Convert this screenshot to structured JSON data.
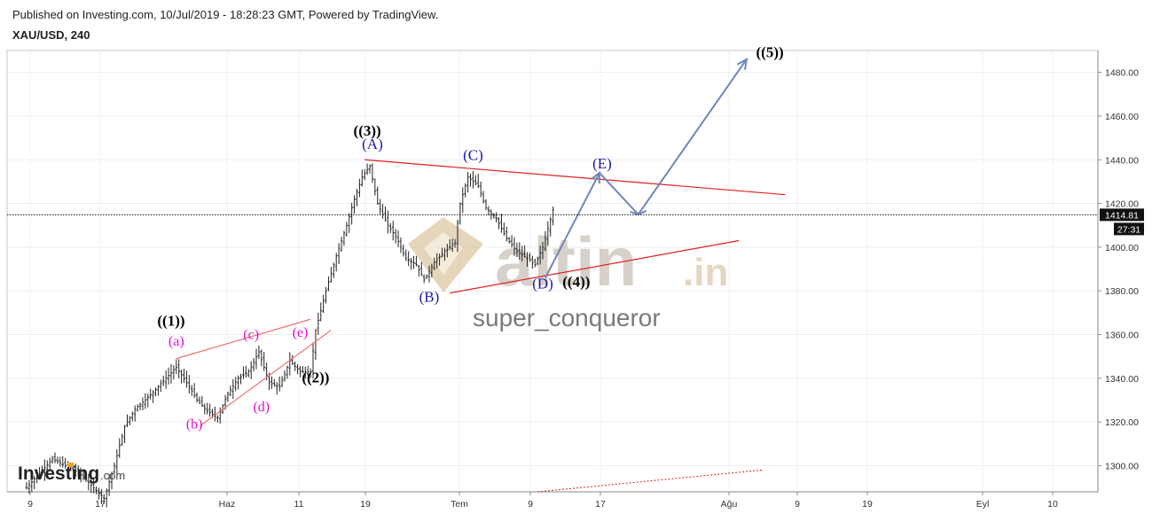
{
  "header": {
    "published": "Published on Investing.com, 10/Jul/2019 - 18:28:23 GMT, Powered by TradingView.",
    "symbol": "XAU/USD, 240"
  },
  "watermark": {
    "brand_main": "altin",
    "brand_tld": ".in",
    "author": "super_conqueror",
    "investing_logo": "Investing",
    "investing_suffix": ".com"
  },
  "colors": {
    "trendline": "#e02020",
    "arrow": "#6f86b9",
    "wave_blue": "#1a1aa6",
    "wave_pink": "#e010d0",
    "price_tag_bg": "#111111"
  },
  "chart_data": {
    "type": "candlestick",
    "ylim": [
      1288,
      1490
    ],
    "y_ticks": [
      "1300.00",
      "1320.00",
      "1340.00",
      "1360.00",
      "1380.00",
      "1400.00",
      "1420.00",
      "1440.00",
      "1460.00",
      "1480.00"
    ],
    "x_ticks": [
      "9",
      "17",
      "Haz",
      "11",
      "19",
      "Tem",
      "9",
      "17",
      "Ağu",
      "9",
      "19",
      "Eyl",
      "10"
    ],
    "current_price": "1414.81",
    "countdown": "27:31",
    "price_path": [
      [
        0,
        1290
      ],
      [
        10,
        1303
      ],
      [
        20,
        1297
      ],
      [
        30,
        1285
      ],
      [
        34,
        1300
      ],
      [
        38,
        1318
      ],
      [
        42,
        1326
      ],
      [
        46,
        1330
      ],
      [
        50,
        1335
      ],
      [
        54,
        1340
      ],
      [
        58,
        1345
      ],
      [
        62,
        1338
      ],
      [
        66,
        1330
      ],
      [
        70,
        1325
      ],
      [
        74,
        1322
      ],
      [
        78,
        1333
      ],
      [
        82,
        1340
      ],
      [
        86,
        1343
      ],
      [
        90,
        1352
      ],
      [
        94,
        1338
      ],
      [
        98,
        1336
      ],
      [
        102,
        1348
      ],
      [
        106,
        1343
      ],
      [
        110,
        1343
      ],
      [
        112,
        1362
      ],
      [
        116,
        1380
      ],
      [
        120,
        1396
      ],
      [
        124,
        1410
      ],
      [
        127,
        1422
      ],
      [
        130,
        1432
      ],
      [
        133,
        1437
      ],
      [
        136,
        1420
      ],
      [
        140,
        1410
      ],
      [
        143,
        1405
      ],
      [
        147,
        1395
      ],
      [
        151,
        1392
      ],
      [
        154,
        1385
      ],
      [
        158,
        1393
      ],
      [
        162,
        1398
      ],
      [
        166,
        1402
      ],
      [
        168,
        1420
      ],
      [
        171,
        1432
      ],
      [
        175,
        1428
      ],
      [
        178,
        1418
      ],
      [
        182,
        1413
      ],
      [
        186,
        1404
      ],
      [
        190,
        1398
      ],
      [
        194,
        1395
      ],
      [
        197,
        1392
      ],
      [
        200,
        1400
      ],
      [
        204,
        1417
      ]
    ],
    "wave_labels": [
      {
        "text": "((1))",
        "style": "black",
        "x": 56,
        "y": 1364
      },
      {
        "text": "((2))",
        "style": "black",
        "x": 112,
        "y": 1338
      },
      {
        "text": "((3))",
        "style": "black",
        "x": 132,
        "y": 1451
      },
      {
        "text": "((4))",
        "style": "black",
        "x": 213,
        "y": 1382
      },
      {
        "text": "((5))",
        "style": "black",
        "x": 288,
        "y": 1487
      },
      {
        "text": "(A)",
        "style": "blue",
        "x": 134,
        "y": 1445
      },
      {
        "text": "(B)",
        "style": "blue",
        "x": 156,
        "y": 1375
      },
      {
        "text": "(C)",
        "style": "blue",
        "x": 173,
        "y": 1440
      },
      {
        "text": "(D)",
        "style": "blue",
        "x": 200,
        "y": 1381
      },
      {
        "text": "(E)",
        "style": "blue",
        "x": 223,
        "y": 1436
      },
      {
        "text": "(a)",
        "style": "pink",
        "x": 58,
        "y": 1355
      },
      {
        "text": "(b)",
        "style": "pink",
        "x": 65,
        "y": 1317
      },
      {
        "text": "(c)",
        "style": "pink",
        "x": 87,
        "y": 1358
      },
      {
        "text": "(d)",
        "style": "pink",
        "x": 91,
        "y": 1325
      },
      {
        "text": "(e)",
        "style": "pink",
        "x": 106,
        "y": 1359
      }
    ],
    "trendlines": [
      {
        "kind": "upper",
        "from": [
          131,
          1440
        ],
        "to": [
          294,
          1424
        ]
      },
      {
        "kind": "lower",
        "from": [
          164,
          1379
        ],
        "to": [
          276,
          1403
        ]
      },
      {
        "kind": "lower",
        "from": [
          58,
          1349
        ],
        "to": [
          110,
          1367
        ]
      },
      {
        "kind": "lower",
        "from": [
          67,
          1318
        ],
        "to": [
          118,
          1362
        ]
      },
      {
        "kind": "dotted",
        "from": [
          198,
          1288
        ],
        "to": [
          285,
          1298
        ]
      }
    ],
    "projection": [
      [
        201,
        1386
      ],
      [
        222,
        1434
      ],
      [
        237,
        1415
      ],
      [
        279,
        1486
      ]
    ]
  }
}
